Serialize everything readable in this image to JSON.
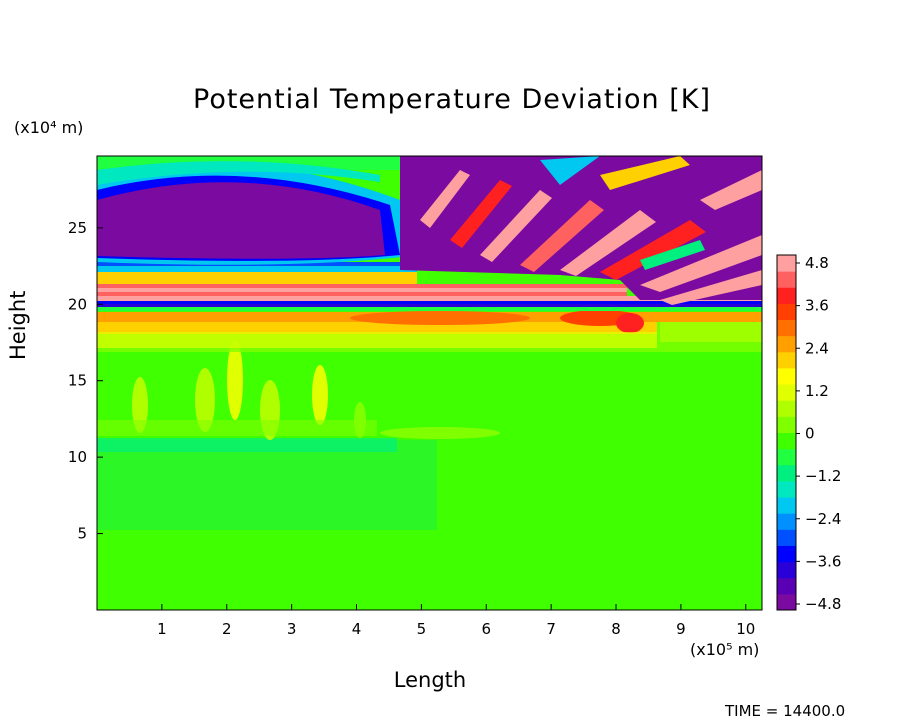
{
  "chart_data": {
    "type": "heatmap",
    "title": "Potential Temperature Deviation [K]",
    "xlabel": "Length",
    "ylabel": "Height",
    "x_unit": "(x10⁵ m)",
    "y_unit": "(x10⁴ m)",
    "xlim": [
      0,
      10.25
    ],
    "ylim": [
      0,
      29.7
    ],
    "x_ticks": [
      1,
      2,
      3,
      4,
      5,
      6,
      7,
      8,
      9,
      10
    ],
    "y_ticks": [
      5,
      10,
      15,
      20,
      25
    ],
    "colorbar": {
      "ticks": [
        "4.8",
        "3.6",
        "2.4",
        "1.2",
        "0",
        "−1.2",
        "−2.4",
        "−3.6",
        "−4.8"
      ],
      "range": [
        -5.4,
        5.4
      ],
      "colors": [
        "#7a0aa0",
        "#5a00b4",
        "#2a00d8",
        "#0000ff",
        "#0050ff",
        "#0090ff",
        "#00c8f0",
        "#00e8c0",
        "#00f080",
        "#20ff40",
        "#40ff00",
        "#80ff00",
        "#b0ff00",
        "#e0ff00",
        "#ffff00",
        "#ffd000",
        "#ffa000",
        "#ff7000",
        "#ff4000",
        "#ff2020",
        "#ff6060",
        "#ffa0a0"
      ]
    },
    "footer": "TIME = 14400.0"
  }
}
